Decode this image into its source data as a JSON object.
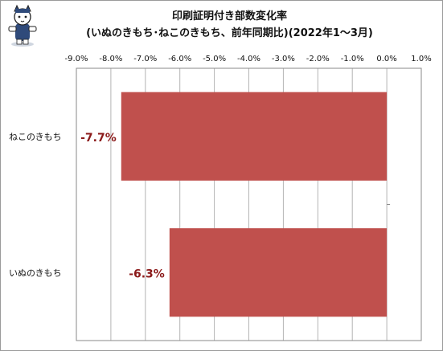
{
  "chart_data": {
    "type": "bar",
    "orientation": "horizontal",
    "title": "印刷証明付き部数変化率",
    "subtitle": "(いぬのきもち･ねこのきもち、前年同期比)(2022年1～3月)",
    "categories": [
      "ねこのきもち",
      "いぬのきもち"
    ],
    "values": [
      -7.7,
      -6.3
    ],
    "value_labels": [
      "-7.7%",
      "-6.3%"
    ],
    "xlim": [
      -9.0,
      1.0
    ],
    "x_ticks": [
      -9.0,
      -8.0,
      -7.0,
      -6.0,
      -5.0,
      -4.0,
      -3.0,
      -2.0,
      -1.0,
      0.0,
      1.0
    ],
    "x_tick_labels": [
      "-9.0%",
      "-8.0%",
      "-7.0%",
      "-6.0%",
      "-5.0%",
      "-4.0%",
      "-3.0%",
      "-2.0%",
      "-1.0%",
      "0.0%",
      "1.0%"
    ],
    "x_axis_position": "top",
    "grid": true,
    "legend": "none"
  },
  "colors": {
    "bar": "#c0504d",
    "value_label": "#8b1a1a",
    "grid": "#b4b4b4",
    "axis": "#8a8a8a"
  },
  "mascot_icon": "cat-mascot-icon"
}
